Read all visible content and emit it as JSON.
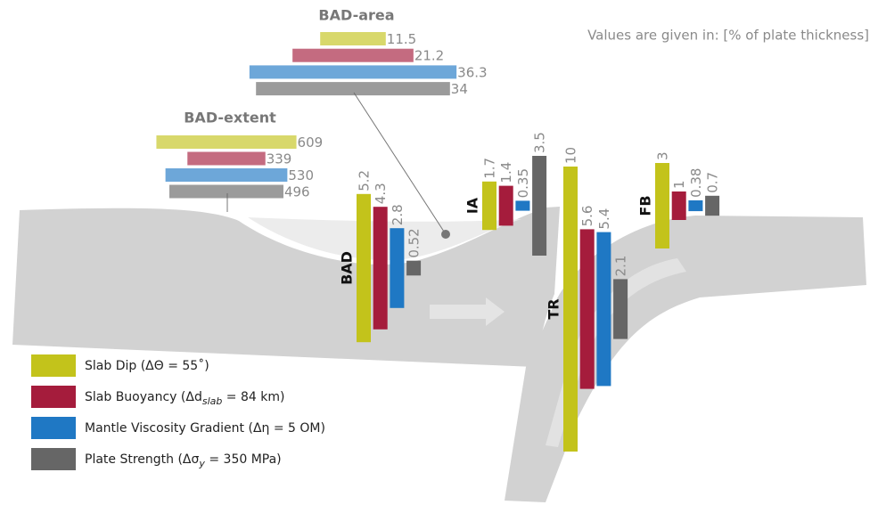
{
  "subtitle": "Values are given in: [% of plate thickness]",
  "legend": [
    {
      "name": "Slab Dip (ΔΘ = 55˚)",
      "color": "#c3c31b"
    },
    {
      "name": "Slab Buoyancy (Δd",
      "sub": "slab",
      "name_end": " = 84 km)",
      "color": "#a51c3c"
    },
    {
      "name": "Mantle Viscosity Gradient (Δη = 5 OM)",
      "color": "#1f78c4"
    },
    {
      "name": "Plate Strength (Δσ",
      "sub": "y",
      "name_end": " = 350 MPa)",
      "color": "#666666"
    }
  ],
  "chart_data": [
    {
      "type": "hbar",
      "title": "BAD-area",
      "values": [
        11.5,
        21.2,
        36.3,
        34
      ],
      "bar_opacity": 0.65
    },
    {
      "type": "hbar",
      "title": "BAD-extent",
      "values": [
        609,
        339,
        530,
        496
      ],
      "bar_opacity": 0.65
    },
    {
      "type": "vbar",
      "title": "BAD",
      "values": [
        5.2,
        4.3,
        2.8,
        0.52
      ]
    },
    {
      "type": "vbar",
      "title": "IA",
      "values": [
        1.7,
        1.4,
        0.35,
        3.5
      ]
    },
    {
      "type": "vbar",
      "title": "TR",
      "values": [
        10,
        5.6,
        5.4,
        2.1
      ]
    },
    {
      "type": "vbar",
      "title": "FB",
      "values": [
        3,
        1,
        0.38,
        0.7
      ]
    }
  ]
}
